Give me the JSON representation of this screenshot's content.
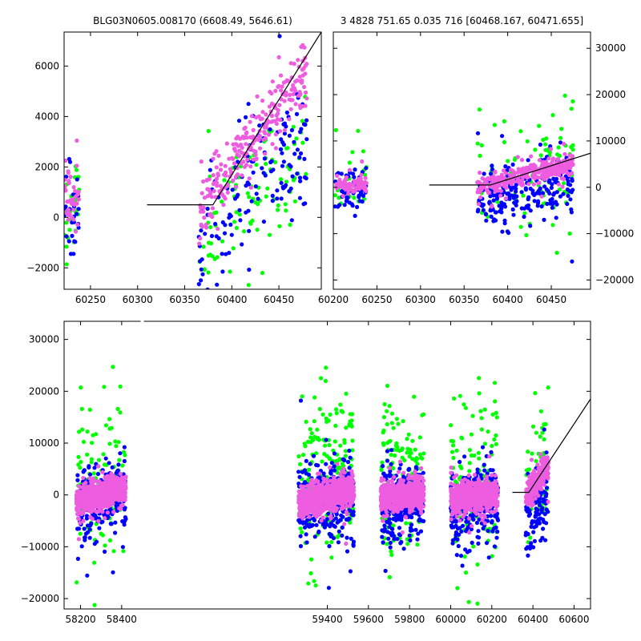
{
  "colors": {
    "green": "#00ff00",
    "blue": "#0000ff",
    "pink": "#ee5ce0",
    "model": "#000000"
  },
  "chart_data": [
    {
      "type": "scatter",
      "panel": "top-left",
      "title": "BLG03N0605.008170 (6608.49, 5646.61)",
      "xlim": [
        60222,
        60495
      ],
      "ylim": [
        -2850,
        7350
      ],
      "xticks": [
        60250,
        60300,
        60350,
        60400,
        60450
      ],
      "yticks": [
        -2000,
        0,
        2000,
        4000,
        6000
      ],
      "yaxis_side": "left",
      "series": [
        {
          "color": "green",
          "clusters": [
            {
              "x": [
                60222,
                60238
              ],
              "y": [
                -200,
                800
              ],
              "sx": 800,
              "sy": 1200,
              "n": 25
            },
            {
              "x": [
                60365,
                60480
              ],
              "y": [
                -1500,
                3000
              ],
              "sx": 1100,
              "sy": 1500,
              "n": 110
            }
          ]
        },
        {
          "color": "blue",
          "clusters": [
            {
              "x": [
                60222,
                60238
              ],
              "y": [
                -400,
                600
              ],
              "sx": 900,
              "sy": 1300,
              "n": 30
            },
            {
              "x": [
                60365,
                60480
              ],
              "y": [
                -1000,
                3500
              ],
              "sx": 1000,
              "sy": 1600,
              "n": 150
            }
          ]
        },
        {
          "color": "pink",
          "clusters": [
            {
              "x": [
                60222,
                60238
              ],
              "y": [
                600,
                1200
              ],
              "sx": 500,
              "sy": 700,
              "n": 40
            },
            {
              "x": [
                60365,
                60480
              ],
              "y": [
                200,
                6000
              ],
              "sx": 500,
              "sy": 700,
              "n": 260
            }
          ]
        }
      ],
      "model_line": {
        "x": [
          60310,
          60380,
          60495
        ],
        "y": [
          500,
          500,
          7350
        ]
      }
    },
    {
      "type": "scatter",
      "panel": "top-right",
      "title": "3 4828 751.65 0.035 716 [60468.167, 60471.655]",
      "xlim": [
        60200,
        60495
      ],
      "ylim": [
        -22000,
        33500
      ],
      "xticks": [
        60200,
        60250,
        60300,
        60350,
        60400,
        60450
      ],
      "yticks": [
        -20000,
        -10000,
        0,
        10000,
        20000,
        30000
      ],
      "yaxis_side": "right",
      "series": [
        {
          "color": "green",
          "clusters": [
            {
              "x": [
                60202,
                60238
              ],
              "y": [
                1000,
                1000
              ],
              "sx": 5000,
              "sy": 5000,
              "n": 25
            },
            {
              "x": [
                60365,
                60475
              ],
              "y": [
                1000,
                4000
              ],
              "sx": 6000,
              "sy": 6000,
              "n": 110
            }
          ]
        },
        {
          "color": "blue",
          "clusters": [
            {
              "x": [
                60202,
                60238
              ],
              "y": [
                -500,
                0
              ],
              "sx": 3000,
              "sy": 2500,
              "n": 60
            },
            {
              "x": [
                60365,
                60475
              ],
              "y": [
                -3000,
                1000
              ],
              "sx": 3500,
              "sy": 3500,
              "n": 220
            }
          ]
        },
        {
          "color": "pink",
          "clusters": [
            {
              "x": [
                60202,
                60238
              ],
              "y": [
                500,
                700
              ],
              "sx": 1200,
              "sy": 1000,
              "n": 90
            },
            {
              "x": [
                60365,
                60475
              ],
              "y": [
                0,
                5000
              ],
              "sx": 1200,
              "sy": 1200,
              "n": 300
            }
          ]
        }
      ],
      "model_line": {
        "x": [
          60310,
          60380,
          60495
        ],
        "y": [
          500,
          500,
          7350
        ]
      }
    },
    {
      "type": "scatter",
      "panel": "bottom",
      "title": "",
      "xlim": [
        58120,
        60680
      ],
      "ylim": [
        -22000,
        33500
      ],
      "xticks": [
        58200,
        58400,
        59400,
        59600,
        59800,
        60000,
        60200,
        60400,
        60600
      ],
      "yticks": [
        -20000,
        -10000,
        0,
        10000,
        20000,
        30000
      ],
      "yaxis_side": "left",
      "series": [
        {
          "color": "green",
          "clusters": [
            {
              "x": [
                58180,
                58420
              ],
              "y": [
                2000,
                4000
              ],
              "sx": 8000,
              "sy": 8000,
              "n": 110
            },
            {
              "x": [
                59260,
                59530
              ],
              "y": [
                4000,
                6000
              ],
              "sx": 8000,
              "sy": 8000,
              "n": 170
            },
            {
              "x": [
                59660,
                59870
              ],
              "y": [
                2000,
                3000
              ],
              "sx": 8000,
              "sy": 8000,
              "n": 140
            },
            {
              "x": [
                60000,
                60230
              ],
              "y": [
                2000,
                3000
              ],
              "sx": 8000,
              "sy": 8000,
              "n": 130
            },
            {
              "x": [
                60365,
                60475
              ],
              "y": [
                2000,
                5000
              ],
              "sx": 8000,
              "sy": 8000,
              "n": 60
            }
          ]
        },
        {
          "color": "blue",
          "clusters": [
            {
              "x": [
                58180,
                58420
              ],
              "y": [
                -2000,
                0
              ],
              "sx": 5000,
              "sy": 4000,
              "n": 230
            },
            {
              "x": [
                59260,
                59530
              ],
              "y": [
                -1500,
                0
              ],
              "sx": 4500,
              "sy": 4000,
              "n": 300
            },
            {
              "x": [
                59660,
                59870
              ],
              "y": [
                -2000,
                -500
              ],
              "sx": 4500,
              "sy": 4000,
              "n": 260
            },
            {
              "x": [
                60000,
                60230
              ],
              "y": [
                -3000,
                -1000
              ],
              "sx": 4500,
              "sy": 4000,
              "n": 250
            },
            {
              "x": [
                60365,
                60475
              ],
              "y": [
                -5000,
                0
              ],
              "sx": 4500,
              "sy": 4000,
              "n": 110
            }
          ]
        },
        {
          "color": "pink",
          "clusters": [
            {
              "x": [
                58180,
                58420
              ],
              "y": [
                -1500,
                1500
              ],
              "sx": 2000,
              "sy": 1500,
              "n": 650
            },
            {
              "x": [
                59260,
                59530
              ],
              "y": [
                -1500,
                1000
              ],
              "sx": 2000,
              "sy": 1500,
              "n": 850
            },
            {
              "x": [
                59660,
                59870
              ],
              "y": [
                -1000,
                500
              ],
              "sx": 2000,
              "sy": 1500,
              "n": 700
            },
            {
              "x": [
                60000,
                60230
              ],
              "y": [
                -1000,
                0
              ],
              "sx": 2000,
              "sy": 1500,
              "n": 700
            },
            {
              "x": [
                60365,
                60475
              ],
              "y": [
                -500,
                6000
              ],
              "sx": 1500,
              "sy": 1500,
              "n": 220
            }
          ]
        }
      ],
      "model_line": {
        "x": [
          60300,
          60380,
          60680
        ],
        "y": [
          500,
          500,
          18500
        ]
      },
      "axis_break_x": 58500
    }
  ]
}
